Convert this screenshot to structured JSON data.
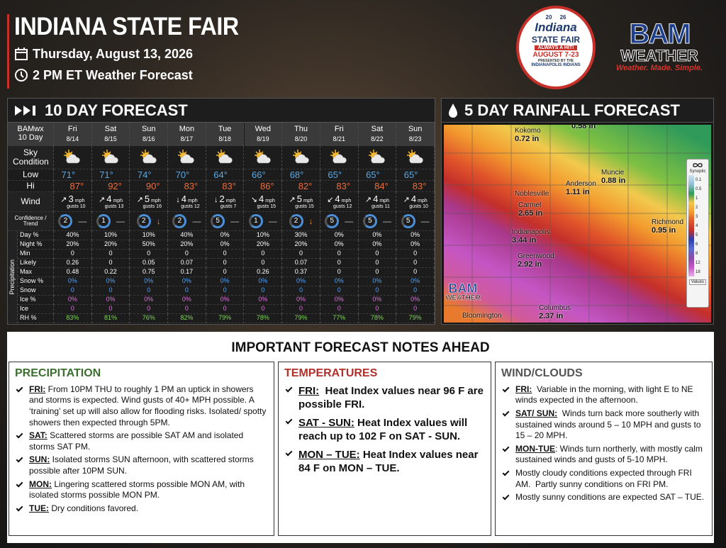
{
  "header": {
    "title": "INDIANA STATE FAIR",
    "date": "Thursday, August 13, 2026",
    "subtitle": "2 PM ET Weather Forecast"
  },
  "fair_logo": {
    "year_left": "20",
    "year_right": "26",
    "name": "Indiana",
    "subname": "STATE FAIR",
    "tagline": "ALWAYS A HIT!",
    "dates": "AUGUST 7-23",
    "presenter": "PRESENTED BY THE",
    "sponsor": "INDIANAPOLIS INDIANS"
  },
  "bam_logo": {
    "name": "BAM",
    "sub": "WEATHER",
    "tagline": "Weather. Made. Simple."
  },
  "forecast": {
    "title": "10 DAY FORECAST",
    "corner": [
      "BAMwx",
      "10 Day"
    ],
    "row_labels": {
      "sky": "Sky Condition",
      "low": "Low",
      "hi": "Hi",
      "wind": "Wind",
      "confidence": "Confidence / Trend",
      "precipitation": "Precipitation"
    },
    "precip_labels": [
      "Day %",
      "Night %",
      "Min",
      "Likely",
      "Max",
      "Snow %",
      "Snow",
      "Ice %",
      "Ice",
      "RH %"
    ],
    "wind_unit": "mph",
    "days": [
      {
        "day": "Fri",
        "date": "8/14",
        "low": "71°",
        "hi": "87°",
        "wind_dir": "↗",
        "wind": "3",
        "gusts": "gusts 10",
        "confidence": "2",
        "trend": "—",
        "precip": [
          "40%",
          "20%",
          "0",
          "0.26",
          "0.48",
          "0%",
          "0",
          "0%",
          "0",
          "83%"
        ]
      },
      {
        "day": "Sat",
        "date": "8/15",
        "low": "71°",
        "hi": "92°",
        "wind_dir": "↗",
        "wind": "4",
        "gusts": "gusts 13",
        "confidence": "1",
        "trend": "—",
        "precip": [
          "10%",
          "20%",
          "0",
          "0",
          "0.22",
          "0%",
          "0",
          "0%",
          "0",
          "81%"
        ]
      },
      {
        "day": "Sun",
        "date": "8/16",
        "low": "74°",
        "hi": "90°",
        "wind_dir": "↗",
        "wind": "5",
        "gusts": "gusts 16",
        "confidence": "2",
        "trend": "↓",
        "precip": [
          "10%",
          "50%",
          "0",
          "0.05",
          "0.75",
          "0%",
          "0",
          "0%",
          "0",
          "76%"
        ]
      },
      {
        "day": "Mon",
        "date": "8/17",
        "low": "70°",
        "hi": "83°",
        "wind_dir": "↓",
        "wind": "4",
        "gusts": "gusts 12",
        "confidence": "2",
        "trend": "—",
        "precip": [
          "40%",
          "20%",
          "0",
          "0.07",
          "0.17",
          "0%",
          "0",
          "0%",
          "0",
          "82%"
        ]
      },
      {
        "day": "Tue",
        "date": "8/18",
        "low": "64°",
        "hi": "83°",
        "wind_dir": "↓",
        "wind": "2",
        "gusts": "gusts 7",
        "confidence": "5",
        "trend": "—",
        "precip": [
          "0%",
          "0%",
          "0",
          "0",
          "0",
          "0%",
          "0",
          "0%",
          "0",
          "79%"
        ]
      },
      {
        "day": "Wed",
        "date": "8/19",
        "low": "66°",
        "hi": "86°",
        "wind_dir": "↘",
        "wind": "4",
        "gusts": "gusts 15",
        "confidence": "1",
        "trend": "—",
        "precip": [
          "10%",
          "20%",
          "0",
          "0",
          "0.26",
          "0%",
          "0",
          "0%",
          "0",
          "78%"
        ]
      },
      {
        "day": "Thu",
        "date": "8/20",
        "low": "68°",
        "hi": "82°",
        "wind_dir": "↗",
        "wind": "5",
        "gusts": "gusts 15",
        "confidence": "2",
        "trend": "↓",
        "precip": [
          "30%",
          "20%",
          "0",
          "0.07",
          "0.37",
          "0%",
          "0",
          "0%",
          "0",
          "79%"
        ]
      },
      {
        "day": "Fri",
        "date": "8/21",
        "low": "65°",
        "hi": "83°",
        "wind_dir": "↙",
        "wind": "4",
        "gusts": "gusts 12",
        "confidence": "5",
        "trend": "—",
        "precip": [
          "0%",
          "0%",
          "0",
          "0",
          "0",
          "0%",
          "0",
          "0%",
          "0",
          "77%"
        ]
      },
      {
        "day": "Sat",
        "date": "8/22",
        "low": "65°",
        "hi": "84°",
        "wind_dir": "↗",
        "wind": "4",
        "gusts": "gusts 11",
        "confidence": "5",
        "trend": "—",
        "precip": [
          "0%",
          "0%",
          "0",
          "0",
          "0",
          "0%",
          "0",
          "0%",
          "0",
          "78%"
        ]
      },
      {
        "day": "Sun",
        "date": "8/23",
        "low": "65°",
        "hi": "83°",
        "wind_dir": "↗",
        "wind": "4",
        "gusts": "gusts 10",
        "confidence": "5",
        "trend": "—",
        "precip": [
          "0%",
          "0%",
          "0",
          "0",
          "0",
          "0%",
          "0",
          "0%",
          "0",
          "79%"
        ]
      }
    ]
  },
  "rainfall": {
    "title": "5 DAY RAINFALL FORECAST",
    "cities": [
      {
        "name": "Kokomo",
        "amount": "0.72 in"
      },
      {
        "amount": "0.58 in"
      },
      {
        "name": "Muncie",
        "amount": "0.88 in"
      },
      {
        "name": "Anderson",
        "amount": "1.11 in"
      },
      {
        "name": "Noblesville"
      },
      {
        "name": "Carmel",
        "amount": "2.65 in"
      },
      {
        "name": "Indianapolis",
        "amount": "3.44 in"
      },
      {
        "name": "Greenwood",
        "amount": "2.92 in"
      },
      {
        "name": "Richmond",
        "amount": "0.95 in"
      },
      {
        "name": "Columbus",
        "amount": "2.37 in"
      },
      {
        "name": "Bloomington"
      }
    ],
    "legend": {
      "title": "Synoptic",
      "values": [
        "0.1",
        "0.5",
        "1",
        "2",
        "3",
        "4",
        "5",
        "6",
        "8",
        "12",
        "18"
      ],
      "footer": "Values"
    },
    "watermark": {
      "name": "BAM",
      "sub": "WEATHER"
    }
  },
  "notes": {
    "title": "IMPORTANT FORECAST NOTES AHEAD",
    "columns": [
      {
        "heading": "PRECIPITATION",
        "items": [
          {
            "label": "FRI:",
            "text": " From 10PM THU to roughly 1 PM an uptick in showers and storms is expected. Wind gusts of 40+ MPH possible. A ‘training’ set up will also allow for flooding risks. Isolated/ spotty showers then expected through 5PM."
          },
          {
            "label": "SAT:",
            "text": " Scattered storms are possible SAT AM and isolated storms SAT PM."
          },
          {
            "label": "SUN:",
            "text": " Isolated storms SUN afternoon, with scattered storms possible after 10PM SUN."
          },
          {
            "label": "MON:",
            "text": " Lingering scattered storms possible MON AM, with isolated storms possible MON PM."
          },
          {
            "label": "TUE:",
            "text": " Dry conditions favored."
          }
        ]
      },
      {
        "heading": "TEMPERATURES",
        "items": [
          {
            "label": "FRI:",
            "text": "  Heat Index values near 96 F are possible FRI."
          },
          {
            "label": "SAT - SUN:",
            "text": " Heat Index values will reach up to 102 F on SAT - SUN."
          },
          {
            "label": "MON – TUE:",
            "text": " Heat Index values near 84 F on MON – TUE."
          }
        ]
      },
      {
        "heading": "WIND/CLOUDS",
        "items": [
          {
            "label": "FRI:",
            "text": "  Variable in the morning, with light E to NE winds expected in the afternoon."
          },
          {
            "label": "SAT/ SUN:",
            "text": "  Winds turn back more southerly with sustained winds around 5 – 10 MPH and gusts to 15 – 20 MPH."
          },
          {
            "label": "MON-TUE",
            "text": ": Winds turn northerly, with mostly calm sustained winds and gusts of 5-10 MPH."
          },
          {
            "text": "Mostly cloudy conditions expected through FRI AM.  Partly sunny conditions on FRI PM."
          },
          {
            "text": "Mostly sunny conditions are expected SAT – TUE."
          }
        ]
      }
    ]
  }
}
